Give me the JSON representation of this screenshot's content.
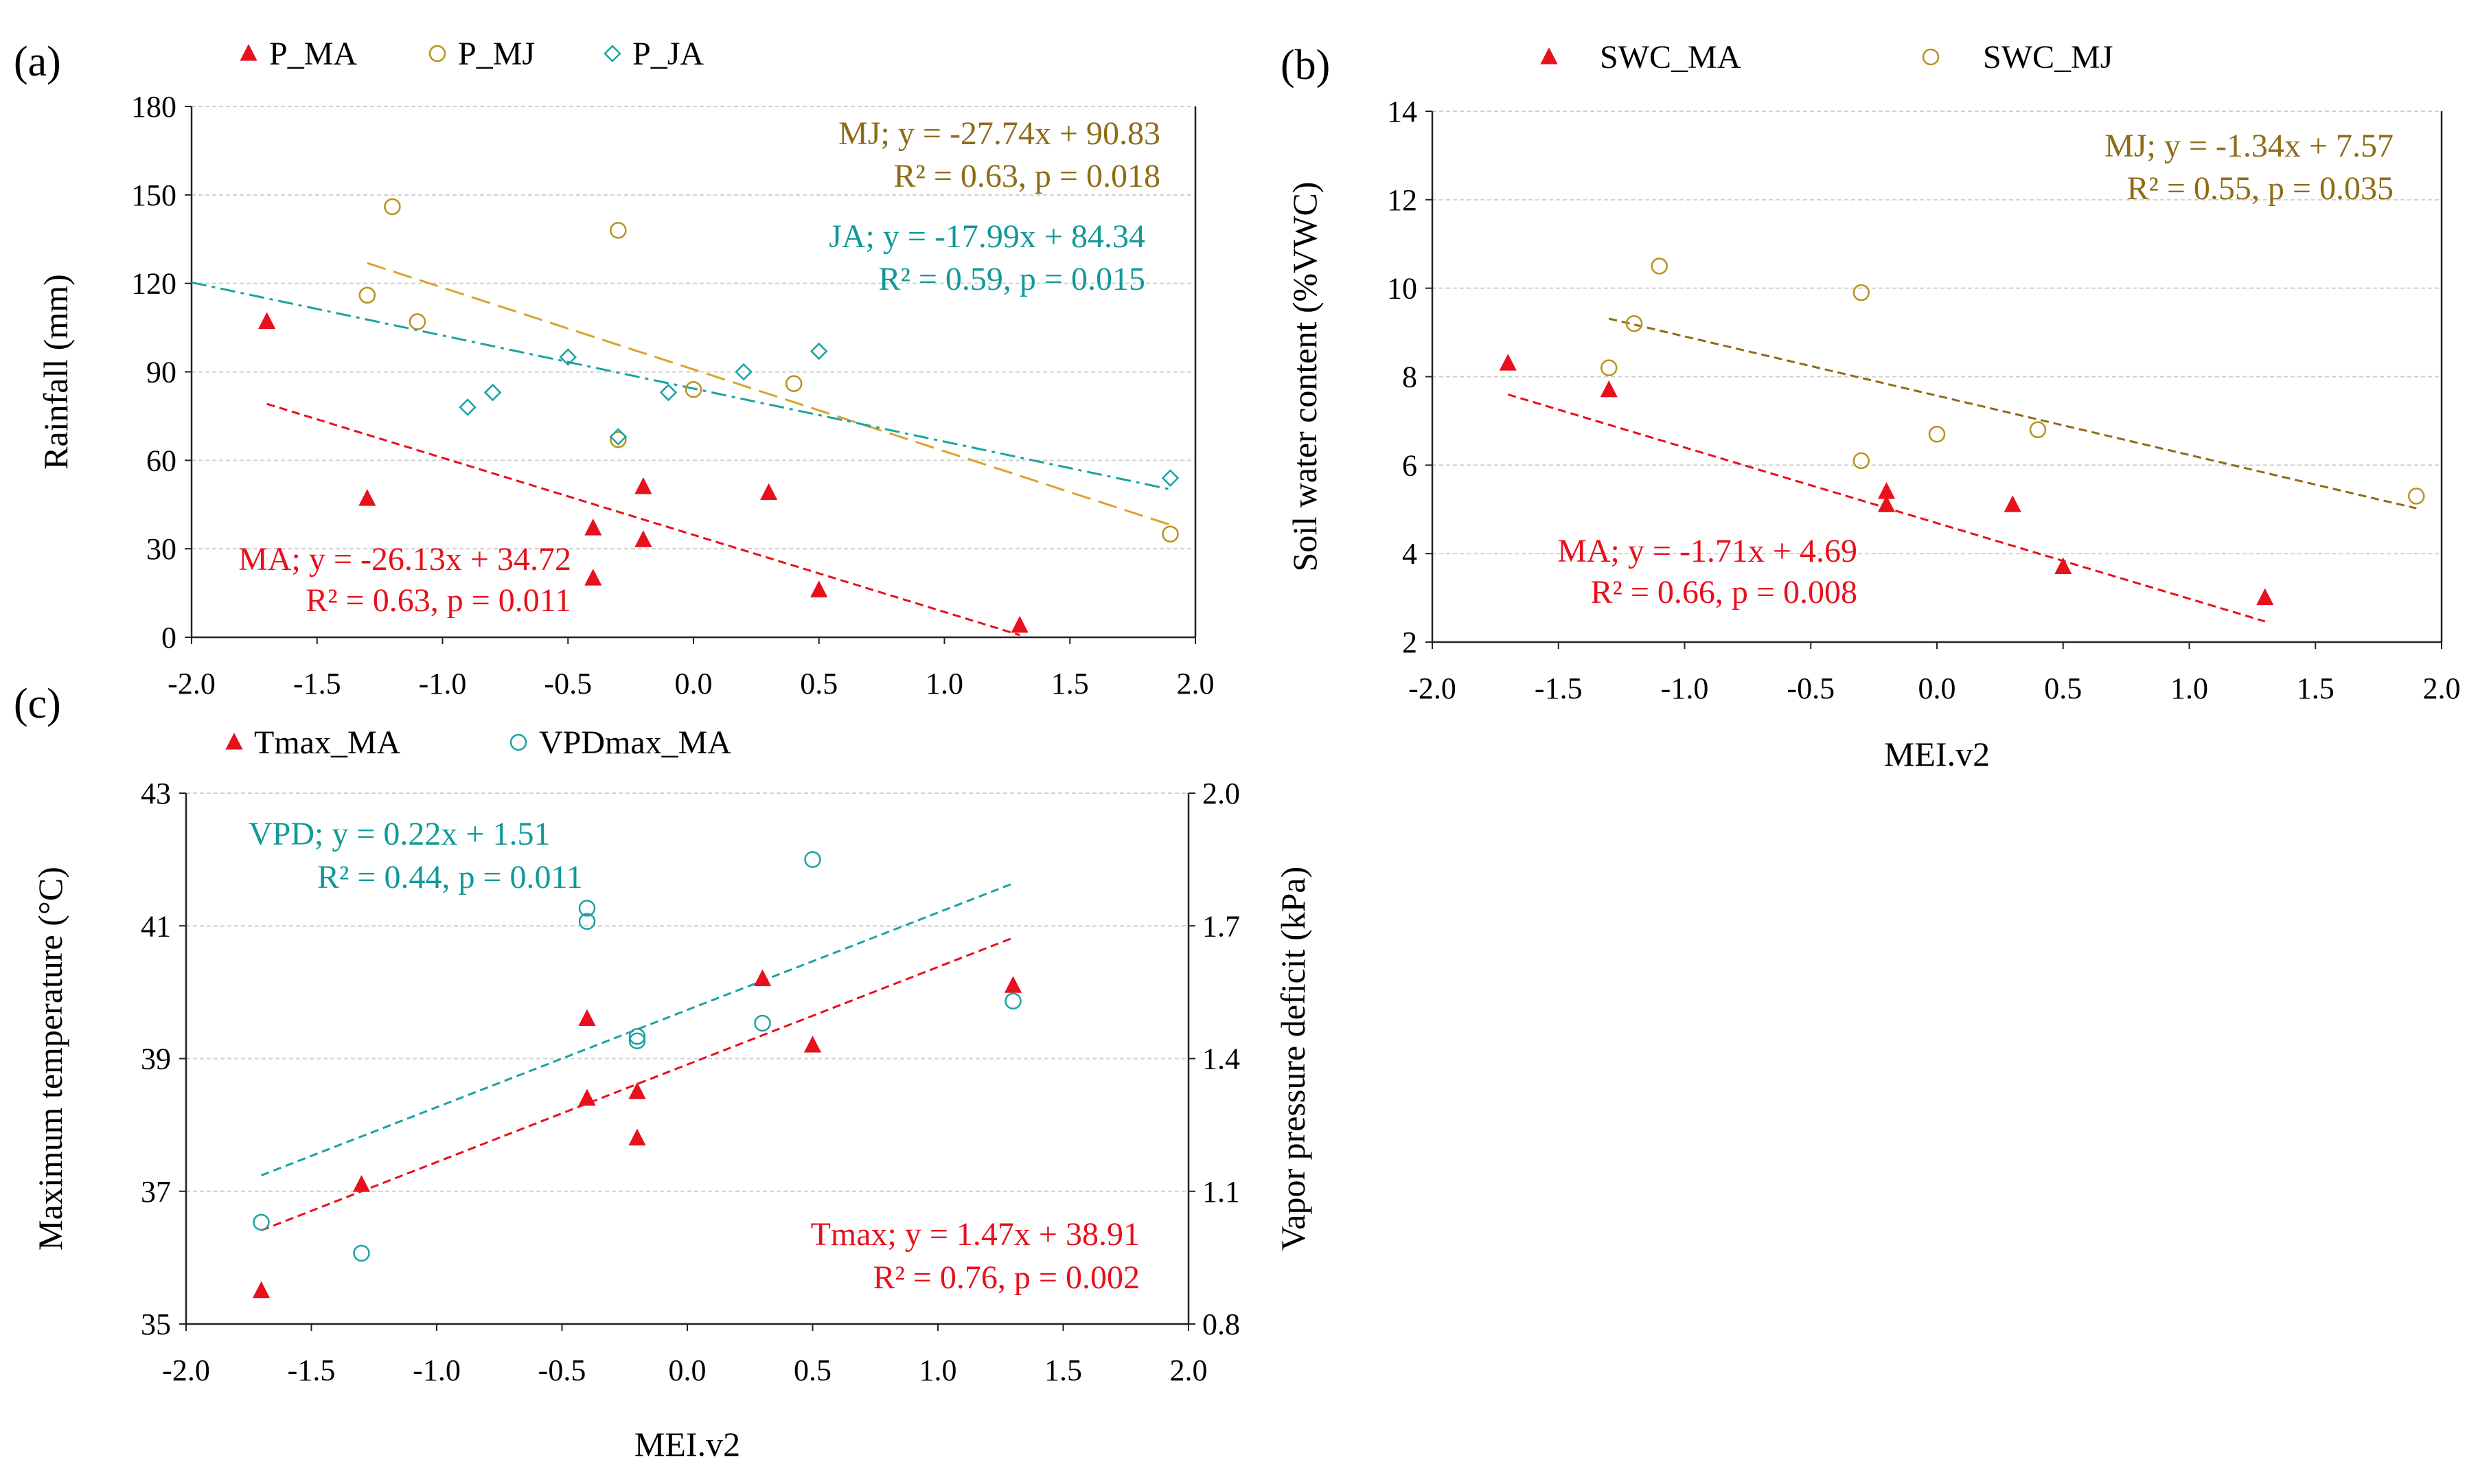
{
  "colors": {
    "red": "#e8101c",
    "gold": "#b8921c",
    "gold_line": "#d8a430",
    "teal": "#1aa3a3",
    "teal_text": "#119999",
    "brown_text": "#8f6b16",
    "brown_line": "#8f6b16",
    "grid": "#d0d0d0",
    "axis": "#222222"
  },
  "chart_data": [
    {
      "panel": "(a)",
      "type": "scatter",
      "xlabel": "",
      "ylabel": "Rainfall  (mm)",
      "xlim": [
        -2.0,
        2.0
      ],
      "ylim": [
        0,
        180
      ],
      "xticks": [
        "-2.0",
        "-1.5",
        "-1.0",
        "-0.5",
        "0.0",
        "0.5",
        "1.0",
        "1.5",
        "2.0"
      ],
      "yticks": [
        "0",
        "30",
        "60",
        "90",
        "120",
        "150",
        "180"
      ],
      "grid": true,
      "legend_position": "top",
      "series": [
        {
          "name": "P_MA",
          "marker": "triangle",
          "color": "red",
          "points": [
            [
              -1.7,
              107
            ],
            [
              -1.3,
              47
            ],
            [
              -0.4,
              37
            ],
            [
              -0.4,
              20
            ],
            [
              -0.2,
              51
            ],
            [
              -0.2,
              33
            ],
            [
              0.3,
              49
            ],
            [
              0.5,
              16
            ],
            [
              1.3,
              4
            ]
          ]
        },
        {
          "name": "P_MJ",
          "marker": "circle",
          "color": "gold",
          "points": [
            [
              -1.3,
              116
            ],
            [
              -1.2,
              146
            ],
            [
              -1.1,
              107
            ],
            [
              -0.3,
              138
            ],
            [
              -0.3,
              67
            ],
            [
              0.0,
              84
            ],
            [
              0.4,
              86
            ],
            [
              1.9,
              35
            ]
          ]
        },
        {
          "name": "P_JA",
          "marker": "diamond",
          "color": "teal",
          "points": [
            [
              -0.9,
              78
            ],
            [
              -0.8,
              83
            ],
            [
              -0.5,
              95
            ],
            [
              -0.3,
              68
            ],
            [
              -0.1,
              83
            ],
            [
              0.2,
              90
            ],
            [
              0.5,
              97
            ],
            [
              1.9,
              54
            ]
          ]
        }
      ],
      "fits": [
        {
          "series": "P_MJ",
          "equation": "MJ;  y = -27.74x + 90.83",
          "stats": "R² = 0.63, p = 0.018",
          "slope": -27.74,
          "intercept": 90.83,
          "x_range": [
            -1.3,
            1.9
          ],
          "color": "gold_line",
          "text_color": "brown_text",
          "dash": "long"
        },
        {
          "series": "P_JA",
          "equation": "JA;  y = -17.99x + 84.34",
          "stats": "R² = 0.59, p = 0.015",
          "slope": -17.99,
          "intercept": 84.34,
          "x_range": [
            -2.0,
            1.9
          ],
          "color": "teal",
          "text_color": "teal_text",
          "dash": "dashdot"
        },
        {
          "series": "P_MA",
          "equation": "MA; y = -26.13x + 34.72",
          "stats": "R² = 0.63,  p = 0.011",
          "slope": -26.13,
          "intercept": 34.72,
          "x_range": [
            -1.7,
            1.3
          ],
          "color": "red",
          "text_color": "red",
          "dash": "short"
        }
      ]
    },
    {
      "panel": "(b)",
      "type": "scatter",
      "xlabel": "MEI.v2",
      "ylabel": "Soil water content (%VWC)",
      "xlim": [
        -2.0,
        2.0
      ],
      "ylim": [
        2,
        14
      ],
      "xticks": [
        "-2.0",
        "-1.5",
        "-1.0",
        "-0.5",
        "0.0",
        "0.5",
        "1.0",
        "1.5",
        "2.0"
      ],
      "yticks": [
        "2",
        "4",
        "6",
        "8",
        "10",
        "12",
        "14"
      ],
      "grid": true,
      "legend_position": "top",
      "series": [
        {
          "name": "SWC_MA",
          "marker": "triangle",
          "color": "red",
          "points": [
            [
              -1.7,
              8.3
            ],
            [
              -1.3,
              7.7
            ],
            [
              -0.2,
              5.4
            ],
            [
              -0.2,
              5.1
            ],
            [
              0.3,
              5.1
            ],
            [
              0.5,
              3.7
            ],
            [
              1.3,
              3.0
            ]
          ]
        },
        {
          "name": "SWC_MJ",
          "marker": "circle",
          "color": "gold",
          "points": [
            [
              -1.3,
              8.2
            ],
            [
              -1.2,
              9.2
            ],
            [
              -1.1,
              10.5
            ],
            [
              -0.3,
              9.9
            ],
            [
              -0.3,
              6.1
            ],
            [
              0.0,
              6.7
            ],
            [
              0.4,
              6.8
            ],
            [
              1.9,
              5.3
            ]
          ]
        }
      ],
      "fits": [
        {
          "series": "SWC_MJ",
          "equation": "MJ; y = -1.34x + 7.57",
          "stats": "R² = 0.55, p = 0.035",
          "slope": -1.34,
          "intercept": 7.57,
          "x_range": [
            -1.3,
            1.9
          ],
          "color": "brown_line",
          "text_color": "brown_text",
          "dash": "short"
        },
        {
          "series": "SWC_MA",
          "equation": "MA;  y = -1.71x + 4.69",
          "stats": "R² = 0.66, p = 0.008",
          "slope": -1.71,
          "intercept": 4.69,
          "x_range": [
            -1.7,
            1.3
          ],
          "color": "red",
          "text_color": "red",
          "dash": "short"
        }
      ]
    },
    {
      "panel": "(c)",
      "type": "scatter",
      "xlabel": "MEI.v2",
      "ylabel": "Maximum temperature (°C)",
      "y2label": "Vapor pressure deficit (kPa)",
      "xlim": [
        -2.0,
        2.0
      ],
      "ylim": [
        35,
        43
      ],
      "y2lim": [
        0.8,
        2.0
      ],
      "xticks": [
        "-2.0",
        "-1.5",
        "-1.0",
        "-0.5",
        "0.0",
        "0.5",
        "1.0",
        "1.5",
        "2.0"
      ],
      "yticks": [
        "35",
        "37",
        "39",
        "41",
        "43"
      ],
      "y2ticks": [
        "0.8",
        "1.1",
        "1.4",
        "1.7",
        "2.0"
      ],
      "grid": true,
      "legend_position": "top-left",
      "series": [
        {
          "name": "Tmax_MA",
          "marker": "triangle",
          "color": "red",
          "axis": "left",
          "points": [
            [
              -1.7,
              35.5
            ],
            [
              -1.3,
              37.1
            ],
            [
              -0.4,
              39.6
            ],
            [
              -0.4,
              38.4
            ],
            [
              -0.2,
              38.5
            ],
            [
              -0.2,
              37.8
            ],
            [
              0.3,
              40.2
            ],
            [
              0.5,
              39.2
            ],
            [
              1.3,
              40.1
            ]
          ]
        },
        {
          "name": "VPDmax_MA",
          "marker": "circle",
          "color": "teal",
          "axis": "right",
          "points": [
            [
              -1.7,
              1.03
            ],
            [
              -1.3,
              0.96
            ],
            [
              -0.4,
              1.74
            ],
            [
              -0.4,
              1.71
            ],
            [
              -0.2,
              1.45
            ],
            [
              -0.2,
              1.44
            ],
            [
              0.3,
              1.48
            ],
            [
              0.5,
              1.85
            ],
            [
              1.3,
              1.53
            ]
          ]
        }
      ],
      "fits": [
        {
          "series": "VPDmax_MA",
          "equation": "VPD; y = 0.22x + 1.51",
          "stats": "R² = 0.44,  p = 0.011",
          "slope": 0.22,
          "intercept": 1.51,
          "x_range": [
            -1.7,
            1.3
          ],
          "color": "teal",
          "text_color": "teal_text",
          "dash": "short",
          "axis": "right"
        },
        {
          "series": "Tmax_MA",
          "equation": "Tmax; y = 1.47x + 38.91",
          "stats": "R² = 0.76,  p = 0.002",
          "slope": 1.47,
          "intercept": 38.91,
          "x_range": [
            -1.7,
            1.3
          ],
          "color": "red",
          "text_color": "red",
          "dash": "short",
          "axis": "left"
        }
      ]
    }
  ]
}
